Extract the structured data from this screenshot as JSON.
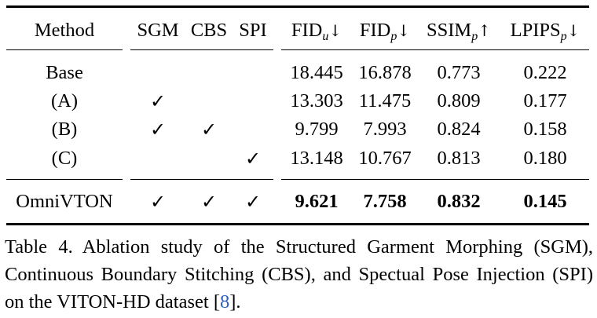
{
  "table": {
    "headers": {
      "method": "Method",
      "sgm": "SGM",
      "cbs": "CBS",
      "spi": "SPI",
      "fid_u": {
        "base": "FID",
        "sub": "u",
        "arrow": "↓"
      },
      "fid_p": {
        "base": "FID",
        "sub": "p",
        "arrow": "↓"
      },
      "ssim_p": {
        "base": "SSIM",
        "sub": "p",
        "arrow": "↑"
      },
      "lpips_p": {
        "base": "LPIPS",
        "sub": "p",
        "arrow": "↓"
      }
    },
    "rows": [
      {
        "method": "Base",
        "sgm": "",
        "cbs": "",
        "spi": "",
        "fid_u": "18.445",
        "fid_p": "16.878",
        "ssim_p": "0.773",
        "lpips_p": "0.222"
      },
      {
        "method": "(A)",
        "sgm": "✓",
        "cbs": "",
        "spi": "",
        "fid_u": "13.303",
        "fid_p": "11.475",
        "ssim_p": "0.809",
        "lpips_p": "0.177"
      },
      {
        "method": "(B)",
        "sgm": "✓",
        "cbs": "✓",
        "spi": "",
        "fid_u": "9.799",
        "fid_p": "7.993",
        "ssim_p": "0.824",
        "lpips_p": "0.158"
      },
      {
        "method": "(C)",
        "sgm": "",
        "cbs": "",
        "spi": "✓",
        "fid_u": "13.148",
        "fid_p": "10.767",
        "ssim_p": "0.813",
        "lpips_p": "0.180"
      }
    ],
    "final_row": {
      "method": "OmniVTON",
      "sgm": "✓",
      "cbs": "✓",
      "spi": "✓",
      "fid_u": "9.621",
      "fid_p": "7.758",
      "ssim_p": "0.832",
      "lpips_p": "0.145"
    }
  },
  "caption": {
    "label": "Table 4.",
    "text_before_citation": "Ablation study of the Structured Garment Morphing (SGM), Continuous Boundary Stitching (CBS), and Spectual Pose Injection (SPI) on the VITON-HD dataset [",
    "citation": "8",
    "text_after_citation": "]."
  }
}
